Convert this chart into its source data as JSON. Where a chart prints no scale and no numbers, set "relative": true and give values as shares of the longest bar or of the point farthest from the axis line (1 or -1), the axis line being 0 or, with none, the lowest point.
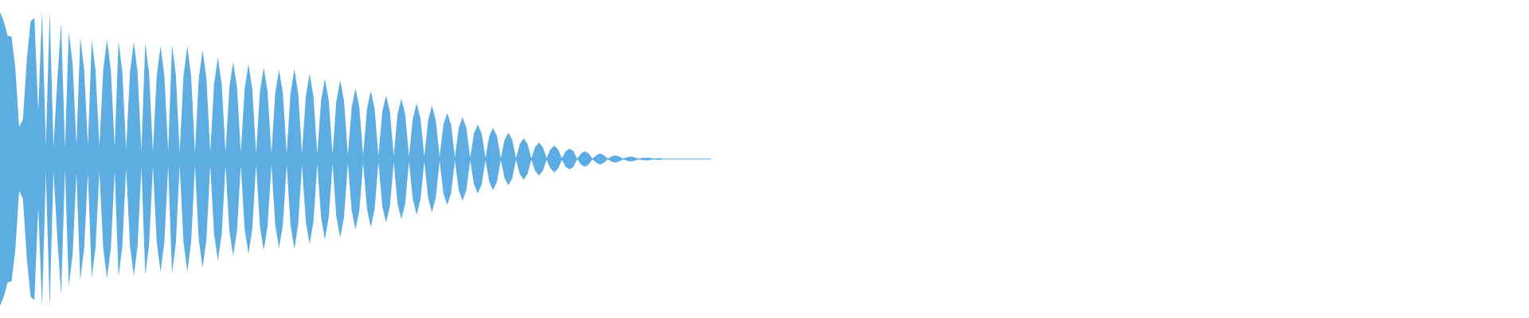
{
  "chart_data": {
    "type": "area",
    "relative": true,
    "categories": [
      null,
      null,
      null,
      null,
      null,
      null,
      null,
      null,
      null,
      null,
      null,
      null,
      null,
      null,
      null,
      null,
      null,
      null,
      null,
      null,
      null,
      null,
      null,
      null,
      null,
      null,
      null,
      null,
      null,
      null,
      null,
      null,
      null,
      null,
      null,
      null,
      null,
      null,
      null,
      null,
      null,
      null,
      null,
      null,
      null,
      null,
      null,
      null,
      null,
      null,
      null,
      null,
      null,
      null,
      null,
      null,
      null,
      null,
      null,
      null,
      null,
      null,
      null,
      null,
      null,
      null,
      null,
      null,
      null,
      null,
      null,
      null,
      null,
      null,
      null,
      null,
      null,
      null,
      null,
      null,
      null,
      null,
      null,
      null,
      null,
      null,
      null,
      null,
      null,
      null,
      null,
      null,
      null,
      null,
      null,
      null,
      null,
      null,
      null,
      null,
      null,
      null,
      null,
      null,
      null,
      null,
      null,
      null,
      null,
      null,
      null,
      null,
      null,
      null,
      null,
      null,
      null,
      null,
      null,
      null,
      null,
      null,
      null,
      null,
      null,
      null,
      null,
      null,
      null,
      null,
      null,
      null,
      null,
      null,
      null,
      null,
      null,
      null,
      null,
      null,
      null,
      null,
      null,
      null,
      null,
      null,
      null,
      null,
      null,
      null,
      null,
      null,
      null,
      null,
      null,
      null,
      null,
      null,
      null,
      null,
      null,
      null,
      null,
      null,
      null,
      null,
      null,
      null,
      null,
      null,
      null,
      null,
      null,
      null,
      null,
      null,
      null,
      null,
      null,
      null,
      null,
      null,
      null,
      null,
      null,
      null,
      null
    ],
    "series": [
      {
        "color": "#5dade2",
        "values": [
          0.994,
          0.93,
          0.834,
          0.828,
          0.618,
          0.216,
          0.268,
          0.666,
          0.93,
          0.956,
          0.322,
          1.0,
          0.092,
          1.0,
          0.08,
          0.538,
          0.92,
          0.07,
          0.86,
          0.646,
          0.096,
          0.818,
          0.612,
          0.092,
          0.802,
          0.596,
          0.08,
          0.602,
          0.806,
          0.602,
          0.08,
          0.796,
          0.592,
          0.064,
          0.586,
          0.79,
          0.586,
          0.054,
          0.784,
          0.58,
          0.048,
          0.564,
          0.764,
          0.564,
          0.048,
          0.774,
          0.57,
          0.044,
          0.56,
          0.764,
          0.56,
          0.044,
          0.544,
          0.736,
          0.544,
          0.044,
          0.506,
          0.688,
          0.506,
          0.044,
          0.484,
          0.656,
          0.484,
          0.044,
          0.474,
          0.64,
          0.474,
          0.038,
          0.456,
          0.618,
          0.456,
          0.038,
          0.446,
          0.602,
          0.446,
          0.038,
          0.446,
          0.608,
          0.446,
          0.038,
          0.424,
          0.576,
          0.424,
          0.032,
          0.398,
          0.544,
          0.398,
          0.032,
          0.392,
          0.532,
          0.392,
          0.026,
          0.35,
          0.478,
          0.35,
          0.026,
          0.338,
          0.462,
          0.338,
          0.022,
          0.318,
          0.43,
          0.318,
          0.022,
          0.302,
          0.408,
          0.302,
          0.016,
          0.274,
          0.376,
          0.274,
          0.016,
          0.264,
          0.36,
          0.264,
          0.016,
          0.232,
          0.312,
          0.232,
          0.01,
          0.21,
          0.284,
          0.21,
          0.01,
          0.172,
          0.232,
          0.172,
          0.01,
          0.156,
          0.21,
          0.156,
          0.006,
          0.13,
          0.178,
          0.13,
          0.006,
          0.102,
          0.14,
          0.102,
          0.006,
          0.08,
          0.112,
          0.08,
          0.006,
          0.064,
          0.092,
          0.064,
          0.006,
          0.054,
          0.07,
          0.054,
          0.002,
          0.038,
          0.052,
          0.038,
          0.002,
          0.026,
          0.038,
          0.026,
          0.002,
          0.018,
          0.024,
          0.018,
          0.002,
          0.012,
          0.016,
          0.012,
          0.002,
          0.008,
          0.01,
          0.008,
          0.002,
          0.004,
          0.006,
          null,
          null,
          null,
          null,
          null,
          null,
          null,
          null,
          null,
          null,
          null,
          null,
          null
        ]
      },
      {
        "color": "#5dade2",
        "values": [
          -0.994,
          -0.93,
          -0.834,
          -0.828,
          -0.618,
          -0.216,
          -0.268,
          -0.666,
          -0.93,
          -0.956,
          -0.322,
          -1.0,
          -0.092,
          -1.0,
          -0.08,
          -0.538,
          -0.92,
          -0.07,
          -0.86,
          -0.646,
          -0.096,
          -0.818,
          -0.612,
          -0.092,
          -0.802,
          -0.596,
          -0.08,
          -0.602,
          -0.806,
          -0.602,
          -0.08,
          -0.796,
          -0.592,
          -0.064,
          -0.586,
          -0.79,
          -0.586,
          -0.054,
          -0.784,
          -0.58,
          -0.048,
          -0.564,
          -0.764,
          -0.564,
          -0.048,
          -0.774,
          -0.57,
          -0.044,
          -0.56,
          -0.764,
          -0.56,
          -0.044,
          -0.544,
          -0.736,
          -0.544,
          -0.044,
          -0.506,
          -0.688,
          -0.506,
          -0.044,
          -0.484,
          -0.656,
          -0.484,
          -0.044,
          -0.474,
          -0.64,
          -0.474,
          -0.038,
          -0.456,
          -0.618,
          -0.456,
          -0.038,
          -0.446,
          -0.602,
          -0.446,
          -0.038,
          -0.446,
          -0.608,
          -0.446,
          -0.038,
          -0.424,
          -0.576,
          -0.424,
          -0.032,
          -0.398,
          -0.544,
          -0.398,
          -0.032,
          -0.392,
          -0.532,
          -0.392,
          -0.026,
          -0.35,
          -0.478,
          -0.35,
          -0.026,
          -0.338,
          -0.462,
          -0.338,
          -0.022,
          -0.318,
          -0.43,
          -0.318,
          -0.022,
          -0.302,
          -0.408,
          -0.302,
          -0.016,
          -0.274,
          -0.376,
          -0.274,
          -0.016,
          -0.264,
          -0.36,
          -0.264,
          -0.016,
          -0.232,
          -0.312,
          -0.232,
          -0.01,
          -0.21,
          -0.284,
          -0.21,
          -0.01,
          -0.172,
          -0.232,
          -0.172,
          -0.01,
          -0.156,
          -0.21,
          -0.156,
          -0.006,
          -0.13,
          -0.178,
          -0.13,
          -0.006,
          -0.102,
          -0.14,
          -0.102,
          -0.006,
          -0.08,
          -0.112,
          -0.08,
          -0.006,
          -0.064,
          -0.092,
          -0.064,
          -0.006,
          -0.054,
          -0.07,
          -0.054,
          -0.002,
          -0.038,
          -0.052,
          -0.038,
          -0.002,
          -0.026,
          -0.038,
          -0.026,
          -0.002,
          -0.018,
          -0.024,
          -0.018,
          -0.002,
          -0.012,
          -0.016,
          -0.012,
          -0.002,
          -0.008,
          -0.01,
          -0.008,
          -0.002,
          -0.004,
          -0.006,
          null,
          null,
          null,
          null,
          null,
          null,
          null,
          null,
          null,
          null,
          null,
          null,
          null
        ]
      }
    ],
    "ref_lines": [
      {
        "axis": "y",
        "value": 0,
        "color": "#5dade2"
      }
    ]
  }
}
